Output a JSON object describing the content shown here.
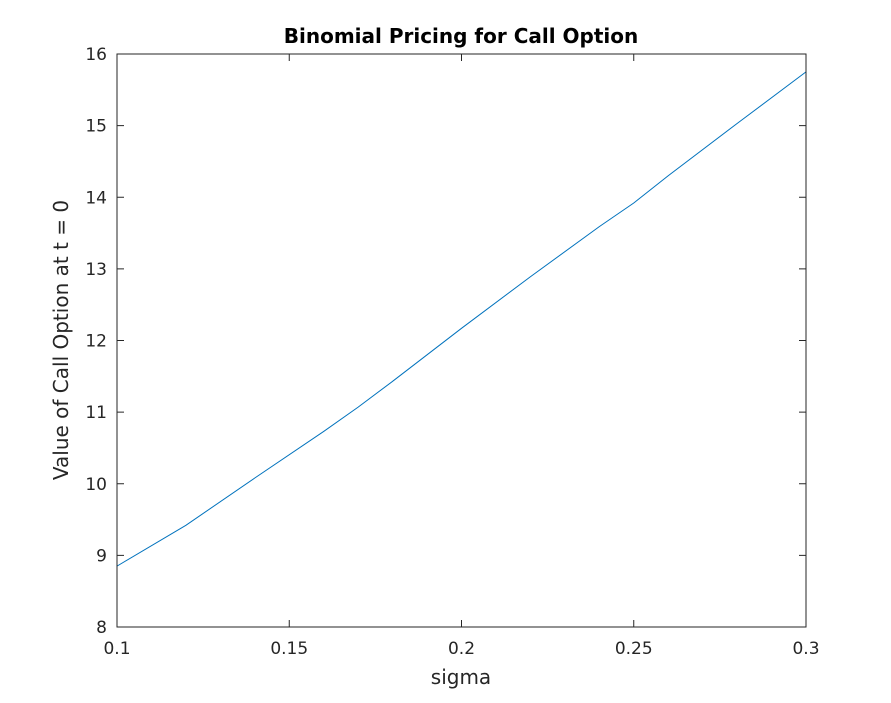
{
  "chart_data": {
    "type": "line",
    "title": "Binomial Pricing for Call Option",
    "xlabel": "sigma",
    "ylabel": "Value of Call Option at t = 0",
    "xlim": [
      0.1,
      0.3
    ],
    "ylim": [
      8,
      16
    ],
    "xticks": [
      0.1,
      0.15,
      0.2,
      0.25,
      0.3
    ],
    "xtick_labels": [
      "0.1",
      "0.15",
      "0.2",
      "0.25",
      "0.3"
    ],
    "yticks": [
      8,
      9,
      10,
      11,
      12,
      13,
      14,
      15,
      16
    ],
    "ytick_labels": [
      "8",
      "9",
      "10",
      "11",
      "12",
      "13",
      "14",
      "15",
      "16"
    ],
    "grid": false,
    "line_color": "#0072bd",
    "series": [
      {
        "x": [
          0.1,
          0.12,
          0.14,
          0.16,
          0.17,
          0.18,
          0.2,
          0.22,
          0.24,
          0.25,
          0.26,
          0.28,
          0.3
        ],
        "y": [
          8.85,
          9.42,
          10.08,
          10.73,
          11.07,
          11.43,
          12.17,
          12.89,
          13.59,
          13.92,
          14.3,
          15.03,
          15.75
        ]
      }
    ]
  }
}
